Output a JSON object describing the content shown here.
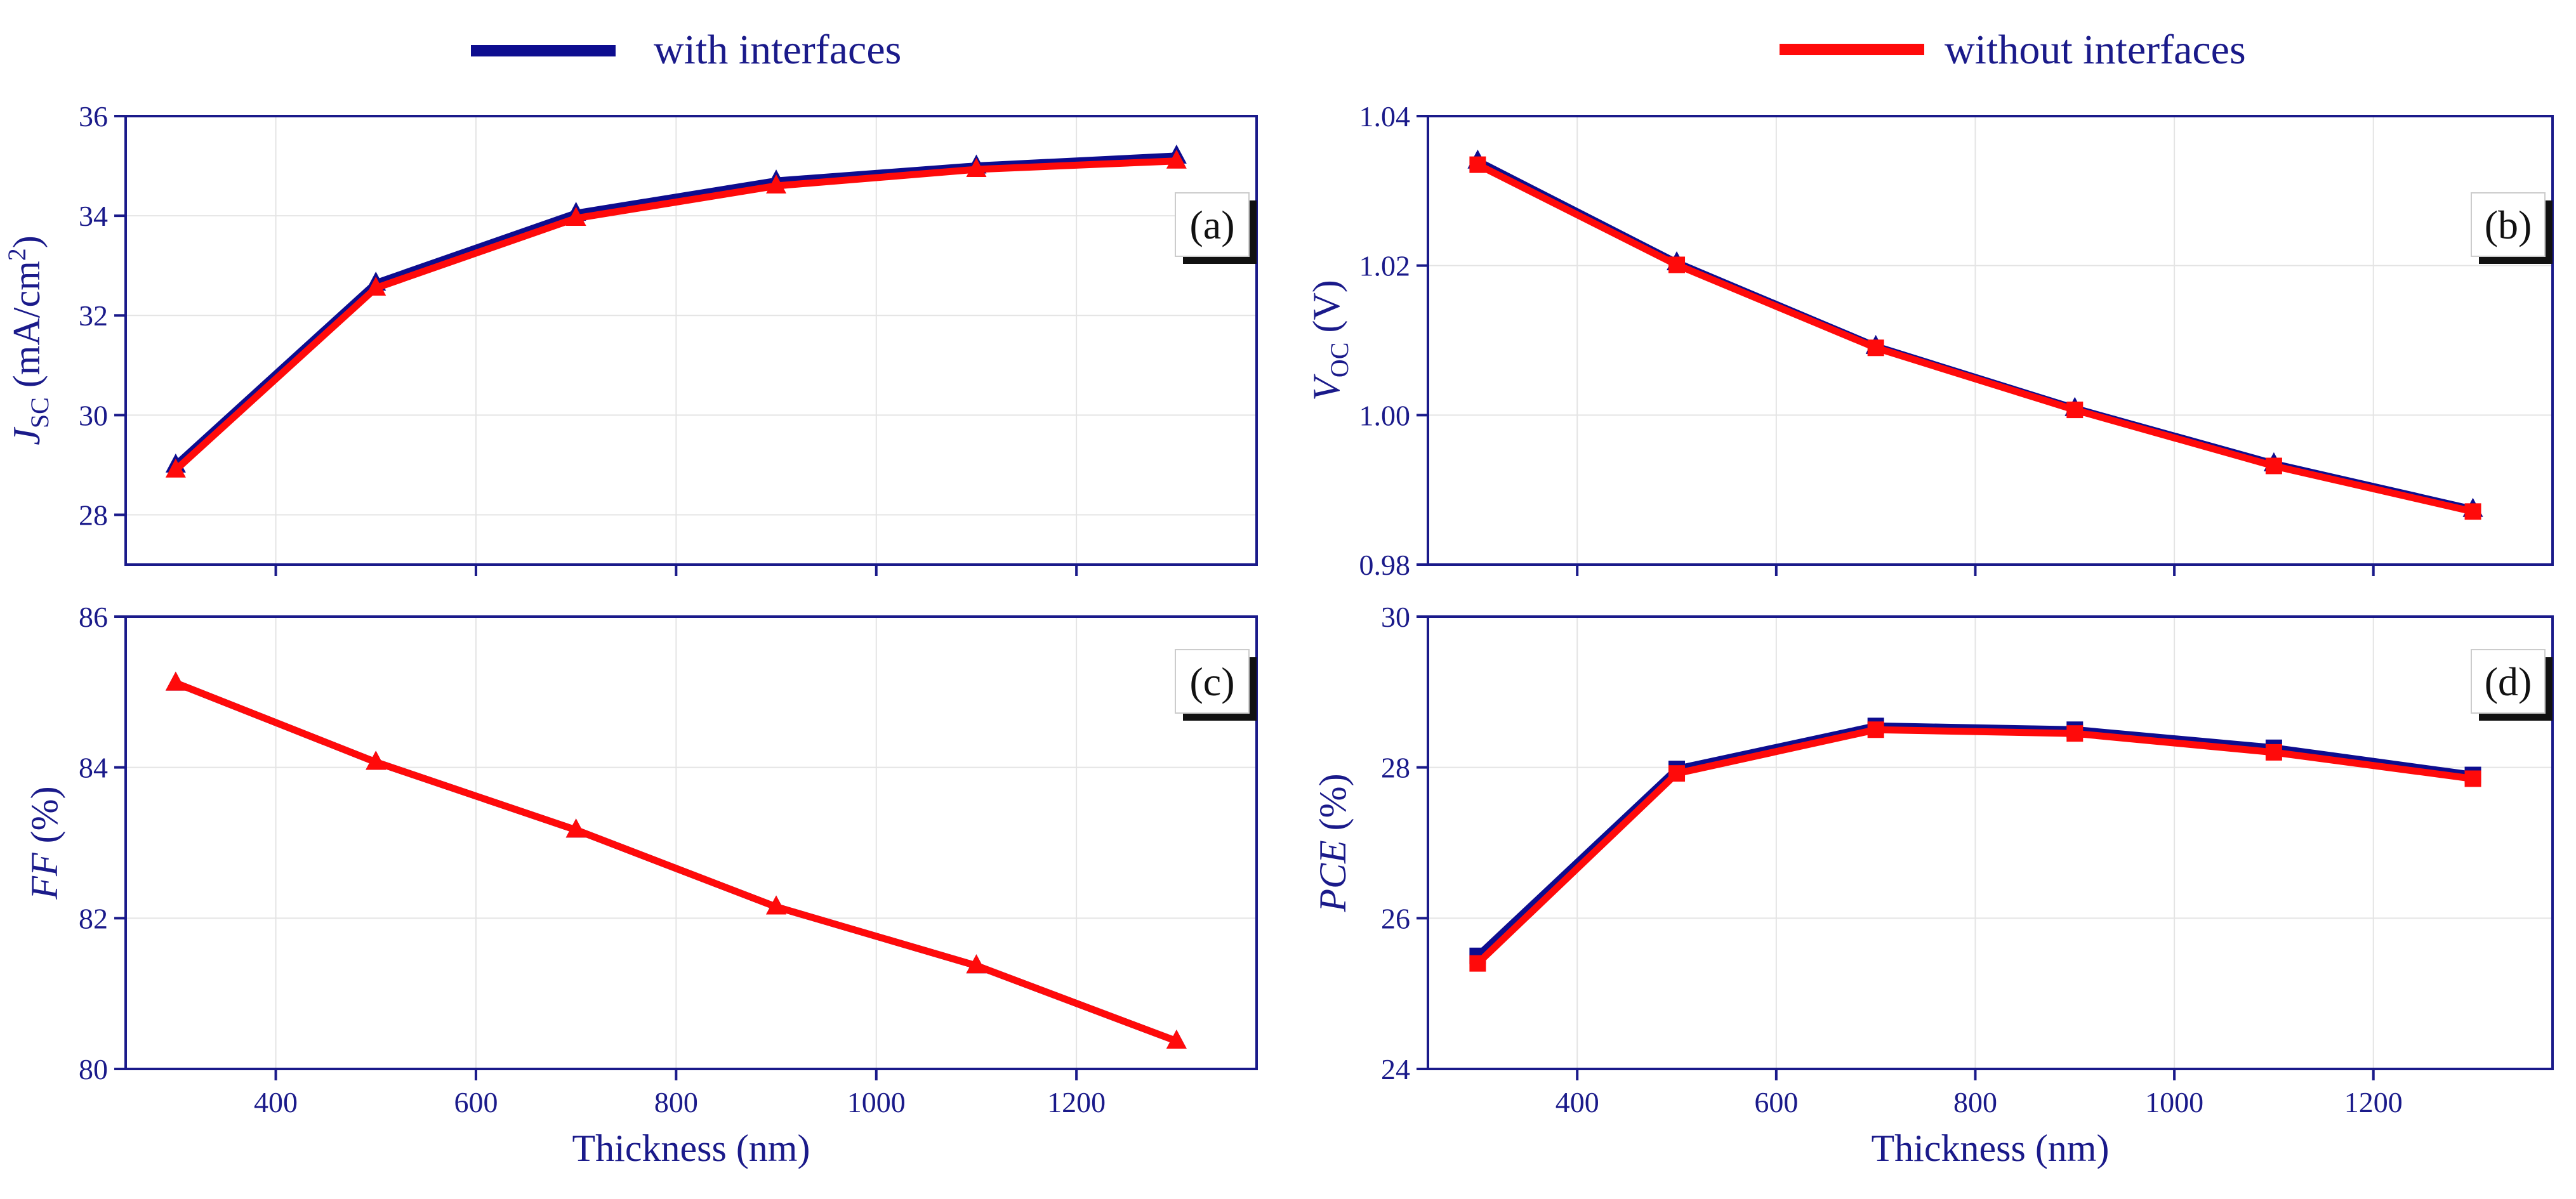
{
  "legend": {
    "with_label": "with interfaces",
    "without_label": "without interfaces"
  },
  "colors": {
    "with": "#0d0d8f",
    "without": "#ff0a0a",
    "axis": "#1a1a8a",
    "grid": "#e4e4e4",
    "label_box": "#111111"
  },
  "chart_data": [
    {
      "id": "a",
      "type": "line",
      "panel_label": "(a)",
      "ylabel_main": "J",
      "ylabel_sub": "SC",
      "ylabel_rest": " (mA/cm",
      "ylabel_sup": "2",
      "ylabel_close": ")",
      "xlabel": "",
      "xlim": [
        250,
        1380
      ],
      "ylim": [
        27,
        36
      ],
      "yticks": [
        28,
        30,
        32,
        34,
        36
      ],
      "ytick_labels": [
        "28",
        "30",
        "32",
        "34",
        "36"
      ],
      "xticks": [
        400,
        600,
        800,
        1000,
        1200
      ],
      "xtick_labels": [
        "",
        "",
        "",
        "",
        ""
      ],
      "x": [
        300,
        500,
        700,
        900,
        1100,
        1300
      ],
      "series": [
        {
          "name": "with interfaces",
          "marker": "triangle",
          "values": [
            29.0,
            32.65,
            34.05,
            34.7,
            35.0,
            35.2
          ]
        },
        {
          "name": "without interfaces",
          "marker": "triangle",
          "values": [
            28.9,
            32.55,
            33.95,
            34.6,
            34.93,
            35.1
          ]
        }
      ]
    },
    {
      "id": "b",
      "type": "line",
      "panel_label": "(b)",
      "ylabel_main": "V",
      "ylabel_sub": "OC",
      "ylabel_rest": " (V)",
      "ylabel_sup": "",
      "ylabel_close": "",
      "xlabel": "",
      "xlim": [
        250,
        1380
      ],
      "ylim": [
        0.98,
        1.04
      ],
      "yticks": [
        0.98,
        1.0,
        1.02,
        1.04
      ],
      "ytick_labels": [
        "0.98",
        "1.00",
        "1.02",
        "1.04"
      ],
      "xticks": [
        400,
        600,
        800,
        1000,
        1200
      ],
      "xtick_labels": [
        "",
        "",
        "",
        "",
        ""
      ],
      "x": [
        300,
        500,
        700,
        900,
        1100,
        1300
      ],
      "series": [
        {
          "name": "with interfaces",
          "marker": "triangle",
          "values": [
            1.034,
            1.0204,
            1.0092,
            1.0009,
            0.9935,
            0.9874
          ]
        },
        {
          "name": "without interfaces",
          "marker": "square",
          "values": [
            1.0335,
            1.0201,
            1.009,
            1.0007,
            0.9932,
            0.9871
          ]
        }
      ]
    },
    {
      "id": "c",
      "type": "line",
      "panel_label": "(c)",
      "ylabel_main": "FF",
      "ylabel_sub": "",
      "ylabel_rest": " (%)",
      "ylabel_sup": "",
      "ylabel_close": "",
      "xlabel": "Thickness (nm)",
      "xlim": [
        250,
        1380
      ],
      "ylim": [
        80,
        86
      ],
      "yticks": [
        80,
        82,
        84,
        86
      ],
      "ytick_labels": [
        "80",
        "82",
        "84",
        "86"
      ],
      "xticks": [
        400,
        600,
        800,
        1000,
        1200
      ],
      "xtick_labels": [
        "400",
        "600",
        "800",
        "1000",
        "1200"
      ],
      "x": [
        300,
        500,
        700,
        900,
        1100,
        1300
      ],
      "series": [
        {
          "name": "with interfaces",
          "marker": "triangle",
          "values": [
            85.12,
            84.07,
            83.17,
            82.15,
            81.37,
            80.37
          ]
        },
        {
          "name": "without interfaces",
          "marker": "triangle",
          "values": [
            85.12,
            84.07,
            83.17,
            82.15,
            81.37,
            80.37
          ]
        }
      ]
    },
    {
      "id": "d",
      "type": "line",
      "panel_label": "(d)",
      "ylabel_main": "PCE",
      "ylabel_sub": "",
      "ylabel_rest": " (%)",
      "ylabel_sup": "",
      "ylabel_close": "",
      "xlabel": "Thickness (nm)",
      "xlim": [
        250,
        1380
      ],
      "ylim": [
        24,
        30
      ],
      "yticks": [
        24,
        26,
        28,
        30
      ],
      "ytick_labels": [
        "24",
        "26",
        "28",
        "30"
      ],
      "xticks": [
        400,
        600,
        800,
        1000,
        1200
      ],
      "xtick_labels": [
        "400",
        "600",
        "800",
        "1000",
        "1200"
      ],
      "x": [
        300,
        500,
        700,
        900,
        1100,
        1300
      ],
      "series": [
        {
          "name": "with interfaces",
          "marker": "square",
          "values": [
            25.5,
            27.98,
            28.55,
            28.5,
            28.26,
            27.9
          ]
        },
        {
          "name": "without interfaces",
          "marker": "square",
          "values": [
            25.4,
            27.92,
            28.5,
            28.45,
            28.2,
            27.85
          ]
        }
      ]
    }
  ]
}
